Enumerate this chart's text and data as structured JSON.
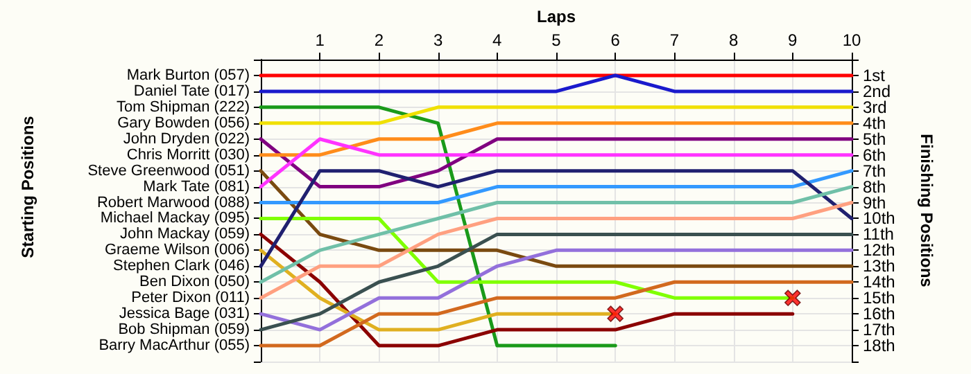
{
  "chart_data": {
    "type": "line",
    "xlabel": "Laps",
    "y2label": "Finishing Positions",
    "annotations": [
      "Starting Positions"
    ],
    "x": [
      0,
      1,
      2,
      3,
      4,
      5,
      6,
      7,
      8,
      9,
      10
    ],
    "xlim": [
      0,
      10
    ],
    "xticks": [
      1,
      2,
      3,
      4,
      5,
      6,
      7,
      8,
      9,
      10
    ],
    "y_categories": [
      "Mark Burton (057)",
      "Daniel Tate (017)",
      "Tom Shipman (222)",
      "Gary Bowden (056)",
      "John Dryden (022)",
      "Chris Morritt (030)",
      "Steve Greenwood (051)",
      "Mark Tate (081)",
      "Robert Marwood (088)",
      "Michael Mackay (095)",
      "John Mackay (059)",
      "Graeme Wilson (006)",
      "Stephen Clark (046)",
      "Ben Dixon (050)",
      "Peter Dixon (011)",
      "Jessica Bage (031)",
      "Bob Shipman (059)",
      "Barry MacArthur (055)"
    ],
    "y2lim": [
      19,
      0
    ],
    "y2ticks": [
      {
        "value": 0,
        "label": null
      },
      {
        "value": 1,
        "label": "1st"
      },
      {
        "value": 2,
        "label": "2nd"
      },
      {
        "value": 3,
        "label": "3rd"
      },
      {
        "value": 4,
        "label": "4th"
      },
      {
        "value": 5,
        "label": "5th"
      },
      {
        "value": 6,
        "label": "6th"
      },
      {
        "value": 7,
        "label": "7th"
      },
      {
        "value": 8,
        "label": "8th"
      },
      {
        "value": 9,
        "label": "9th"
      },
      {
        "value": 10,
        "label": "10th"
      },
      {
        "value": 11,
        "label": "11th"
      },
      {
        "value": 12,
        "label": "12th"
      },
      {
        "value": 13,
        "label": "13th"
      },
      {
        "value": 14,
        "label": "14th"
      },
      {
        "value": 15,
        "label": "15th"
      },
      {
        "value": 16,
        "label": "16th"
      },
      {
        "value": 17,
        "label": "17th"
      },
      {
        "value": 18,
        "label": "18th"
      },
      {
        "value": 19,
        "label": null
      }
    ],
    "grid": true,
    "marker": "none",
    "line_style": "solid",
    "series": [
      {
        "axis": "y2",
        "color": "#ff0000",
        "values": [
          1,
          1,
          1,
          1,
          1,
          1,
          1,
          1,
          1,
          1,
          1
        ]
      },
      {
        "axis": "y2",
        "color": "#1a1acc",
        "values": [
          2,
          2,
          2,
          2,
          2,
          2,
          1,
          2,
          2,
          2,
          2
        ]
      },
      {
        "axis": "y2",
        "color": "#1a9a1a",
        "values": [
          3,
          3,
          3,
          4,
          18,
          18,
          18,
          null,
          null,
          null,
          null
        ]
      },
      {
        "axis": "y2",
        "color": "#f0e000",
        "values": [
          4,
          4,
          4,
          3,
          3,
          3,
          3,
          3,
          3,
          3,
          3
        ]
      },
      {
        "axis": "y2",
        "color": "#800080",
        "values": [
          5,
          8,
          8,
          7,
          5,
          5,
          5,
          5,
          5,
          5,
          5
        ]
      },
      {
        "axis": "y2",
        "color": "#ff8c1a",
        "values": [
          6,
          6,
          5,
          5,
          4,
          4,
          4,
          4,
          4,
          4,
          4
        ]
      },
      {
        "axis": "y2",
        "color": "#7a4a10",
        "values": [
          7,
          11,
          12,
          12,
          12,
          13,
          13,
          13,
          13,
          13,
          13
        ]
      },
      {
        "axis": "y2",
        "color": "#ff33ff",
        "values": [
          8,
          5,
          6,
          6,
          6,
          6,
          6,
          6,
          6,
          6,
          6
        ]
      },
      {
        "axis": "y2",
        "color": "#3399ff",
        "values": [
          9,
          9,
          9,
          9,
          8,
          8,
          8,
          8,
          8,
          8,
          7
        ]
      },
      {
        "axis": "y2",
        "color": "#80ff00",
        "values": [
          10,
          10,
          10,
          14,
          14,
          14,
          14,
          15,
          15,
          15,
          null
        ]
      },
      {
        "axis": "y2",
        "color": "#8b0000",
        "values": [
          11,
          14,
          18,
          18,
          17,
          17,
          17,
          16,
          16,
          16,
          null
        ]
      },
      {
        "axis": "y2",
        "color": "#e0b020",
        "values": [
          12,
          15,
          17,
          17,
          16,
          16,
          16,
          null,
          null,
          null,
          null
        ]
      },
      {
        "axis": "y2",
        "color": "#202070",
        "values": [
          13,
          7,
          7,
          8,
          7,
          7,
          7,
          7,
          7,
          7,
          10
        ]
      },
      {
        "axis": "y2",
        "color": "#70c0a8",
        "values": [
          14,
          12,
          11,
          10,
          9,
          9,
          9,
          9,
          9,
          9,
          8
        ]
      },
      {
        "axis": "y2",
        "color": "#ffa080",
        "values": [
          15,
          13,
          13,
          11,
          10,
          10,
          10,
          10,
          10,
          10,
          9
        ]
      },
      {
        "axis": "y2",
        "color": "#9370db",
        "values": [
          16,
          17,
          15,
          15,
          13,
          12,
          12,
          12,
          12,
          12,
          12
        ]
      },
      {
        "axis": "y2",
        "color": "#3a5050",
        "values": [
          17,
          16,
          14,
          13,
          11,
          11,
          11,
          11,
          11,
          11,
          11
        ]
      },
      {
        "axis": "y2",
        "color": "#d2691e",
        "values": [
          18,
          18,
          16,
          16,
          15,
          15,
          15,
          14,
          14,
          14,
          14
        ]
      },
      {
        "axis": "y2",
        "type": "scatter",
        "marker": "cross",
        "color": "#ff0000",
        "x": [
          6,
          9
        ],
        "values": [
          16,
          15
        ]
      }
    ]
  }
}
